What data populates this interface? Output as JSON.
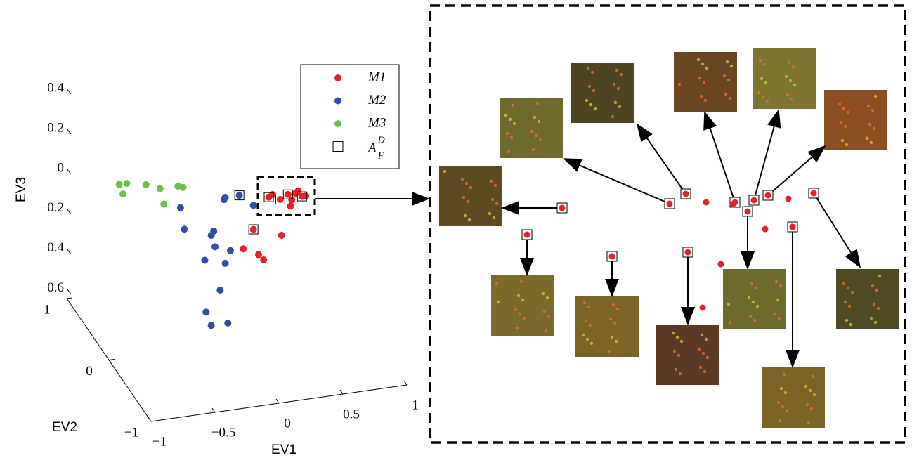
{
  "chart_data": {
    "type": "scatter3d",
    "xlabel": "EV1",
    "ylabel": "EV2",
    "zlabel": "EV3",
    "xlim": [
      -1,
      1
    ],
    "ylim": [
      -1,
      1
    ],
    "zlim": [
      -0.65,
      0.4
    ],
    "xticks": [
      {
        "value": -1,
        "label": "−1"
      },
      {
        "value": -0.5,
        "label": "−0.5"
      },
      0,
      0.5,
      1
    ],
    "yticks": [
      {
        "value": -1,
        "label": "−1"
      },
      0,
      1
    ],
    "zticks": [
      0.4,
      0.2,
      0,
      {
        "value": -0.2,
        "label": "−0.2"
      },
      {
        "value": -0.4,
        "label": "−0.4"
      },
      {
        "value": -0.6,
        "label": "−0.6"
      }
    ],
    "series": [
      {
        "name": "M1",
        "color": "#e8202a",
        "x": [
          0.05,
          0.17,
          0.21,
          0.35,
          0.25,
          0.28,
          0.34,
          0.42,
          0.4,
          0.46,
          0.51,
          0.48,
          0.54,
          0.43,
          0.13
        ],
        "z": [
          -0.19,
          -0.23,
          -0.26,
          -0.15,
          0.05,
          0.06,
          0.03,
          -0.01,
          0.05,
          0.05,
          0.03,
          0.06,
          0.03,
          0.02,
          -0.1
        ]
      },
      {
        "name": "M2",
        "color": "#2e4fa3",
        "x": [
          0.02,
          -0.09,
          -0.1,
          0.13,
          -0.44,
          -0.41,
          -0.2,
          -0.18,
          -0.17,
          -0.25,
          -0.05,
          -0.09,
          -0.13,
          -0.24,
          -0.2,
          -0.07
        ],
        "z": [
          0.08,
          0.08,
          0.07,
          0.02,
          0.06,
          -0.05,
          -0.1,
          -0.08,
          -0.16,
          -0.22,
          -0.19,
          -0.25,
          -0.38,
          -0.48,
          -0.55,
          -0.55
        ]
      },
      {
        "name": "M3",
        "color": "#6cc04a",
        "x": [
          -0.92,
          -0.86,
          -0.89,
          -0.71,
          -0.6,
          -0.57,
          -0.46,
          -0.42
        ],
        "z": [
          0.22,
          0.22,
          0.17,
          0.2,
          0.17,
          0.09,
          0.17,
          0.16
        ]
      },
      {
        "name": "A",
        "name_superscript": "D",
        "name_subscript": "F",
        "marker": "square",
        "color": "#000000",
        "x": [
          0.02,
          0.13,
          0.25,
          0.34,
          0.4,
          0.51
        ],
        "z": [
          0.08,
          -0.1,
          0.05,
          0.03,
          0.05,
          0.03
        ]
      }
    ]
  }
}
